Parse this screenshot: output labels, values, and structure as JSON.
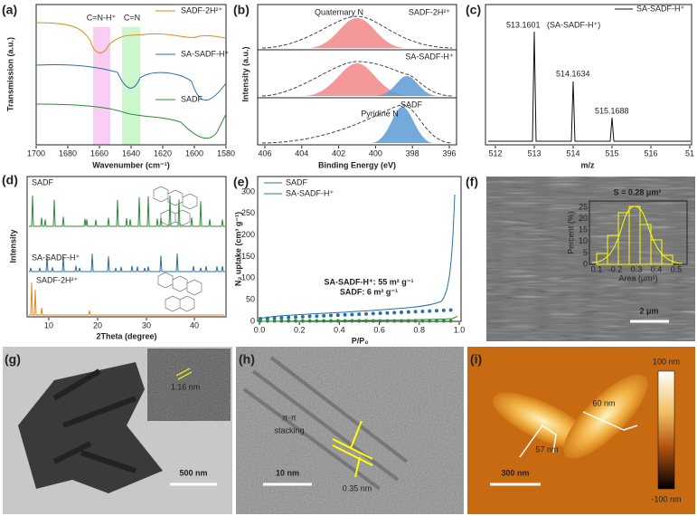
{
  "panels": {
    "a": {
      "label": "(a)",
      "xlabel": "Wavenumber (cm⁻¹)",
      "ylabel": "Transmission (a.u.)",
      "xticks": [
        "1700",
        "1680",
        "1660",
        "1640",
        "1620",
        "1600",
        "1580"
      ],
      "legend": [
        "SADF-2H²⁺",
        "SA-SADF-H⁺",
        "SADF"
      ],
      "annotations": [
        "C=N-H⁺",
        "C=N"
      ]
    },
    "b": {
      "label": "(b)",
      "xlabel": "Binding Energy (eV)",
      "ylabel": "Intensity (a.u.)",
      "xticks": [
        "406",
        "404",
        "402",
        "400",
        "398",
        "396"
      ],
      "samples": [
        "SADF-2H²⁺",
        "SA-SADF-H⁺",
        "SADF"
      ],
      "annotations": [
        "Quaternary N",
        "Pyridine N"
      ]
    },
    "c": {
      "label": "(c)",
      "xlabel": "m/z",
      "legend": "SA-SADF-H⁺",
      "xticks": [
        "512",
        "513",
        "514",
        "515",
        "516",
        "51"
      ],
      "peaks": [
        "513.1601",
        "514.1634",
        "515.1688"
      ],
      "peak_note": "(SA-SADF-H⁺)"
    },
    "d": {
      "label": "(d)",
      "xlabel": "2Theta (degree)",
      "ylabel": "Intensity",
      "xticks": [
        "10",
        "20",
        "30",
        "40"
      ],
      "samples": [
        "SADF",
        "SA-SADF-H⁺",
        "SADF-2H²⁺"
      ]
    },
    "e": {
      "label": "(e)",
      "xlabel": "P/P₀",
      "ylabel": "N₂ uptake (cm³ g⁻¹)",
      "xticks": [
        "0.0",
        "0.2",
        "0.4",
        "0.6",
        "0.8",
        "1.0"
      ],
      "yticks": [
        "0",
        "50",
        "100",
        "150",
        "200",
        "250",
        "300"
      ],
      "legend": [
        "SADF",
        "SA-SADF-H⁺"
      ],
      "annotations": [
        "SA-SADF-H⁺: 55 m² g⁻¹",
        "SADF: 6 m² g⁻¹"
      ]
    },
    "f": {
      "label": "(f)",
      "inset_title": "S = 0.28 μm²",
      "inset_ylabel": "Percent (%)",
      "inset_xlabel": "Area (μm²)",
      "inset_yticks": [
        "0",
        "5",
        "10",
        "15",
        "20",
        "25"
      ],
      "inset_xticks": [
        "0.1",
        "0.2",
        "0.3",
        "0.4",
        "0.5"
      ],
      "scale_bar": "2 μm"
    },
    "g": {
      "label": "(g)",
      "spacing": "1.16 nm",
      "scale_bar": "500 nm"
    },
    "h": {
      "label": "(h)",
      "annotation": [
        "π-π",
        "stacking"
      ],
      "spacing": "0.35 nm",
      "scale_bar": "10 nm"
    },
    "i": {
      "label": "(i)",
      "colorbar": [
        "100 nm",
        "-100 nm"
      ],
      "heights": [
        "60 nm",
        "57 nm"
      ],
      "scale_bar": "300 nm"
    }
  }
}
